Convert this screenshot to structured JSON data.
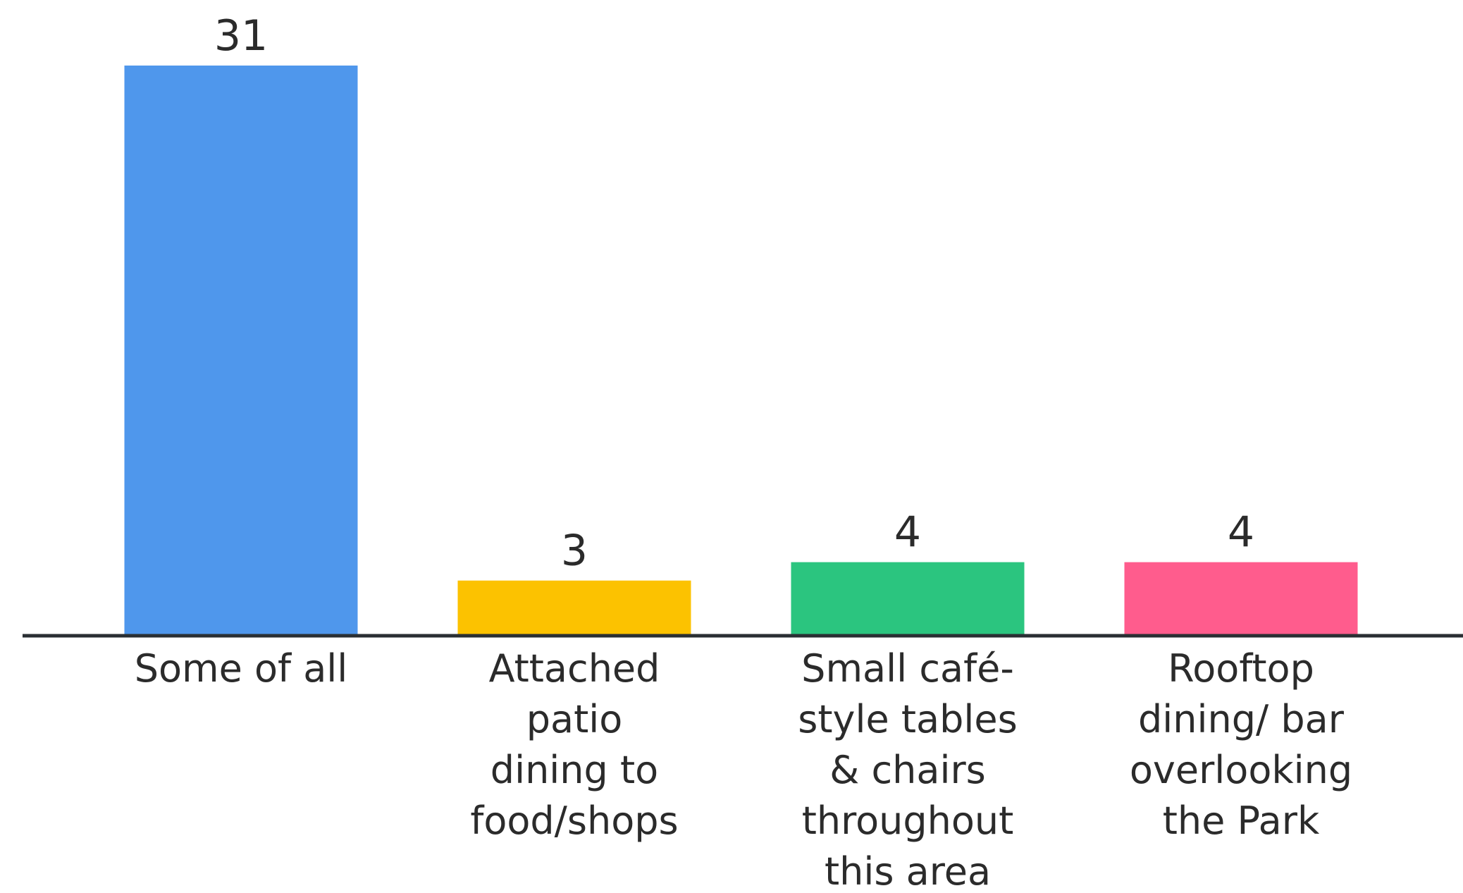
{
  "chart_data": {
    "type": "bar",
    "categories": [
      [
        "Some of all"
      ],
      [
        "Attached",
        "patio",
        "dining to",
        "food/shops"
      ],
      [
        "Small café-",
        "style tables",
        "& chairs",
        "throughout",
        "this area"
      ],
      [
        "Rooftop",
        "dining/ bar",
        "overlooking",
        "the Park"
      ]
    ],
    "values": [
      31,
      3,
      4,
      4
    ],
    "data_labels": [
      "31",
      "3",
      "4",
      "4"
    ],
    "colors": [
      "#4f97ec",
      "#fcc200",
      "#2bc57f",
      "#ff5c8d"
    ],
    "axis_color": "#2a2f33",
    "ylim": [
      0,
      31
    ],
    "title": "",
    "xlabel": "",
    "ylabel": "",
    "grid": false,
    "legend": "none"
  }
}
